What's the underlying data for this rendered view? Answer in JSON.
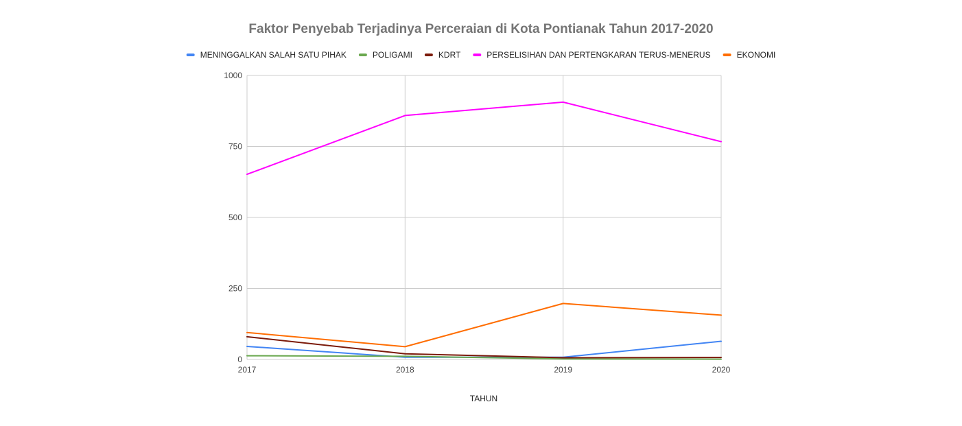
{
  "chart_data": {
    "type": "line",
    "title": "Faktor Penyebab Terjadinya Perceraian di Kota Pontianak Tahun 2017-2020",
    "xlabel": "TAHUN",
    "ylabel": "",
    "x": [
      "2017",
      "2018",
      "2019",
      "2020"
    ],
    "ylim": [
      0,
      1000
    ],
    "yticks": [
      0,
      250,
      500,
      750,
      1000
    ],
    "grid": true,
    "legend_position": "top",
    "series": [
      {
        "name": "MENINGGALKAN SALAH SATU PIHAK",
        "color": "#4285f4",
        "values": [
          46,
          8,
          8,
          64
        ]
      },
      {
        "name": "POLIGAMI",
        "color": "#6aa84f",
        "values": [
          13,
          11,
          2,
          1
        ]
      },
      {
        "name": "KDRT",
        "color": "#7b1a0a",
        "values": [
          80,
          20,
          6,
          7
        ]
      },
      {
        "name": "PERSELISIHAN DAN PERTENGKARAN TERUS-MENERUS",
        "color": "#ff00ff",
        "values": [
          652,
          859,
          906,
          767
        ]
      },
      {
        "name": "EKONOMI",
        "color": "#ff6d00",
        "values": [
          95,
          45,
          197,
          156
        ]
      }
    ]
  }
}
